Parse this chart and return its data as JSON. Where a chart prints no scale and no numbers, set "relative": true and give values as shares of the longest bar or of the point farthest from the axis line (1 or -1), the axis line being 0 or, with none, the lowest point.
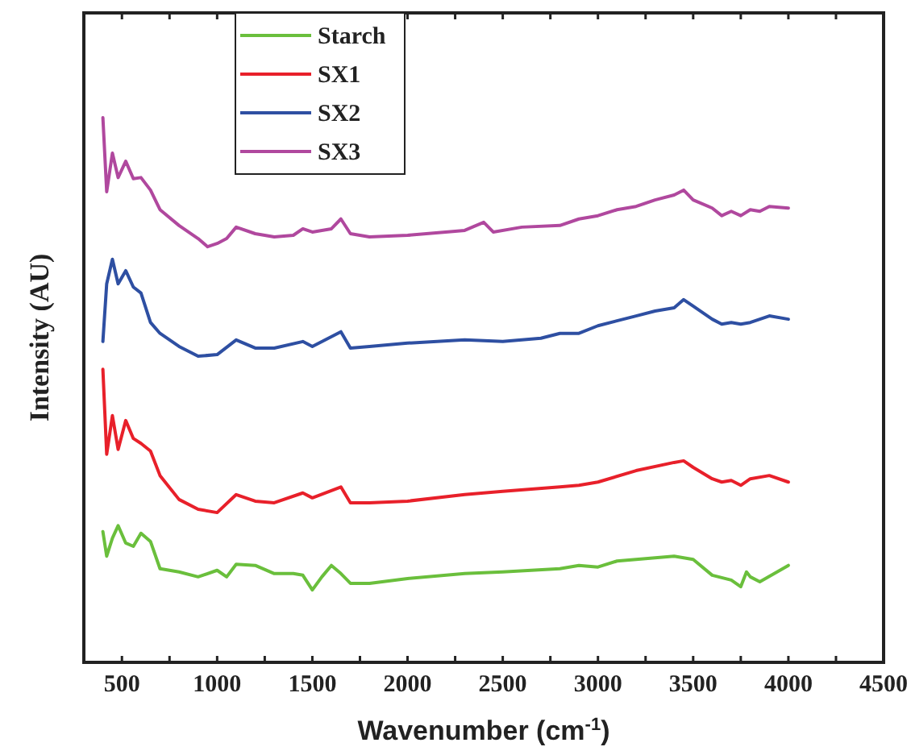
{
  "chart_data": {
    "type": "line",
    "xlabel": "Wavenumber (cm$^{-1}$)",
    "ylabel": "Intensity (AU)",
    "relative": true,
    "xlim": [
      300,
      4500
    ],
    "xticks": [
      500,
      {
        "value": 750,
        "label": null
      },
      1000,
      {
        "value": 1250,
        "label": null
      },
      1500,
      {
        "value": 1750,
        "label": null
      },
      2000,
      {
        "value": 2250,
        "label": null
      },
      2500,
      {
        "value": 2750,
        "label": null
      },
      3000,
      {
        "value": 3250,
        "label": null
      },
      3500,
      {
        "value": 3750,
        "label": null
      },
      4000,
      {
        "value": 4250,
        "label": null
      },
      4500
    ],
    "legend": "top left",
    "grid": false,
    "marker": "none",
    "line_style": "solid",
    "series": [
      {
        "name": "Starch",
        "color": "#6abf3c",
        "x": [
          400,
          420,
          450,
          480,
          520,
          560,
          600,
          650,
          700,
          800,
          900,
          1000,
          1050,
          1100,
          1200,
          1300,
          1400,
          1450,
          1500,
          1550,
          1600,
          1650,
          1700,
          1800,
          2000,
          2300,
          2500,
          2800,
          2900,
          3000,
          3100,
          3200,
          3400,
          3500,
          3600,
          3700,
          3750,
          3780,
          3800,
          3850,
          4000
        ],
        "values": [
          0.24,
          0.195,
          0.228,
          0.251,
          0.219,
          0.213,
          0.237,
          0.222,
          0.172,
          0.166,
          0.157,
          0.169,
          0.157,
          0.18,
          0.178,
          0.163,
          0.163,
          0.16,
          0.133,
          0.157,
          0.178,
          0.163,
          0.145,
          0.145,
          0.154,
          0.163,
          0.166,
          0.172,
          0.178,
          0.175,
          0.186,
          0.189,
          0.195,
          0.189,
          0.16,
          0.151,
          0.139,
          0.166,
          0.157,
          0.148,
          0.178
        ]
      },
      {
        "name": "SX1",
        "color": "#e8202a",
        "x": [
          400,
          420,
          450,
          480,
          520,
          560,
          600,
          650,
          700,
          800,
          900,
          1000,
          1100,
          1200,
          1300,
          1450,
          1500,
          1650,
          1700,
          1800,
          2000,
          2300,
          2500,
          2800,
          2900,
          3000,
          3200,
          3400,
          3450,
          3500,
          3600,
          3650,
          3700,
          3750,
          3800,
          3900,
          4000
        ],
        "values": [
          0.538,
          0.382,
          0.453,
          0.391,
          0.444,
          0.411,
          0.402,
          0.388,
          0.343,
          0.299,
          0.281,
          0.275,
          0.308,
          0.296,
          0.293,
          0.311,
          0.302,
          0.322,
          0.293,
          0.293,
          0.296,
          0.308,
          0.314,
          0.322,
          0.325,
          0.331,
          0.352,
          0.367,
          0.37,
          0.358,
          0.337,
          0.331,
          0.334,
          0.325,
          0.337,
          0.343,
          0.331
        ]
      },
      {
        "name": "SX2",
        "color": "#2e4fa2",
        "x": [
          400,
          420,
          450,
          480,
          520,
          560,
          600,
          650,
          700,
          800,
          900,
          1000,
          1100,
          1200,
          1300,
          1450,
          1500,
          1650,
          1700,
          1800,
          2000,
          2300,
          2500,
          2700,
          2800,
          2900,
          3000,
          3100,
          3200,
          3300,
          3400,
          3450,
          3500,
          3600,
          3650,
          3700,
          3750,
          3800,
          3850,
          3900,
          4000
        ],
        "values": [
          0.589,
          0.695,
          0.74,
          0.695,
          0.719,
          0.689,
          0.678,
          0.624,
          0.604,
          0.58,
          0.562,
          0.565,
          0.592,
          0.577,
          0.577,
          0.589,
          0.58,
          0.607,
          0.577,
          0.58,
          0.586,
          0.592,
          0.589,
          0.595,
          0.604,
          0.604,
          0.618,
          0.627,
          0.636,
          0.645,
          0.651,
          0.666,
          0.654,
          0.63,
          0.621,
          0.624,
          0.621,
          0.624,
          0.63,
          0.636,
          0.63
        ]
      },
      {
        "name": "SX3",
        "color": "#b0489e",
        "x": [
          400,
          420,
          450,
          480,
          520,
          560,
          600,
          650,
          700,
          800,
          900,
          950,
          1000,
          1050,
          1100,
          1200,
          1300,
          1400,
          1450,
          1500,
          1600,
          1650,
          1700,
          1800,
          2000,
          2200,
          2300,
          2400,
          2450,
          2600,
          2800,
          2900,
          3000,
          3100,
          3200,
          3300,
          3400,
          3450,
          3500,
          3600,
          3650,
          3700,
          3750,
          3800,
          3850,
          3900,
          4000
        ],
        "values": [
          1,
          0.864,
          0.935,
          0.89,
          0.92,
          0.888,
          0.89,
          0.867,
          0.831,
          0.802,
          0.778,
          0.763,
          0.769,
          0.778,
          0.799,
          0.787,
          0.781,
          0.784,
          0.796,
          0.79,
          0.796,
          0.814,
          0.787,
          0.781,
          0.784,
          0.79,
          0.793,
          0.808,
          0.79,
          0.799,
          0.802,
          0.814,
          0.82,
          0.831,
          0.837,
          0.849,
          0.858,
          0.867,
          0.849,
          0.834,
          0.82,
          0.828,
          0.82,
          0.831,
          0.828,
          0.837,
          0.834
        ]
      }
    ]
  }
}
